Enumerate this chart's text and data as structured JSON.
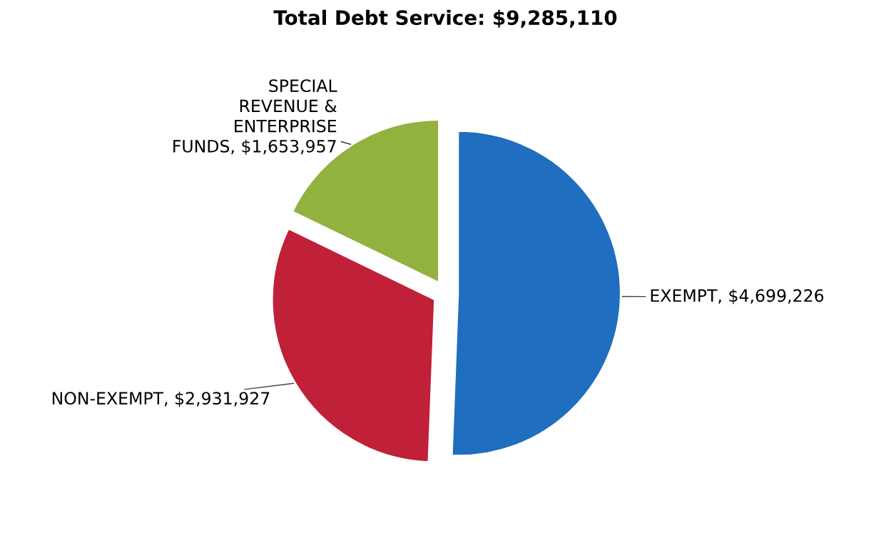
{
  "chart_data": {
    "type": "pie",
    "title": "Total Debt Service: $9,285,110",
    "categories": [
      "EXEMPT",
      "NON-EXEMPT",
      "SPECIAL\nREVENUE &\nENTERPRISE\nFUNDS"
    ],
    "values": [
      4699226,
      2931927,
      1653957
    ],
    "colors": [
      "#1f6ec0",
      "#c02038",
      "#93b13f"
    ],
    "value_labels": [
      "$4,699,226",
      "$2,931,927",
      "$1,653,957"
    ],
    "legend": false
  }
}
